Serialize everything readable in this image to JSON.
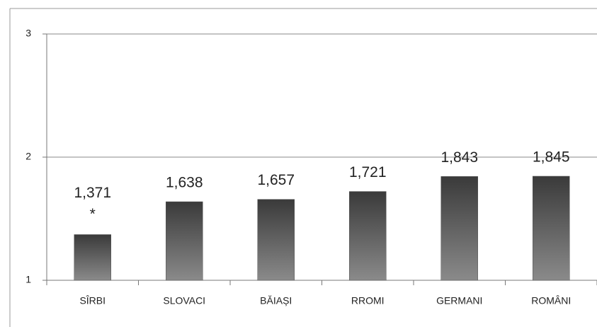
{
  "chart_data": {
    "type": "bar",
    "categories": [
      "SÎRBI",
      "SLOVACI",
      "BĂIAȘI",
      "RROMI",
      "GERMANI",
      "ROMÂNI"
    ],
    "values": [
      1.371,
      1.638,
      1.657,
      1.721,
      1.843,
      1.845
    ],
    "value_labels": [
      "1,371",
      "1,638",
      "1,657",
      "1,721",
      "1,843",
      "1,845"
    ],
    "annotation": "*",
    "color": "#555555",
    "ylim": [
      1,
      3
    ],
    "yticks": [
      1,
      2,
      3
    ],
    "grid": true
  }
}
